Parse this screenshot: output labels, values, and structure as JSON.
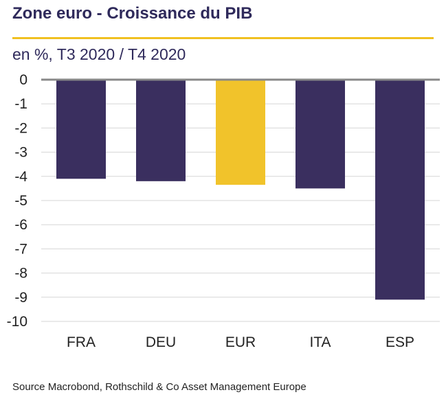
{
  "header": {
    "title": "Zone euro - Croissance du PIB",
    "subtitle": "en %, T3 2020 / T4 2020"
  },
  "footer": {
    "source": "Source Macrobond, Rothschild & Co Asset Management Europe"
  },
  "colors": {
    "bar": "#3a2f5f",
    "highlight": "#f1c32b",
    "accent_rule": "#f0c020",
    "grid": "#d6d6d6",
    "zero_line": "#888888",
    "text": "#222222",
    "title": "#2f2a5b"
  },
  "chart_data": {
    "type": "bar",
    "categories": [
      "FRA",
      "DEU",
      "EUR",
      "ITA",
      "ESP"
    ],
    "values": [
      -4.1,
      -4.2,
      -4.35,
      -4.5,
      -9.1
    ],
    "highlight_category": "EUR",
    "ylim": [
      -10,
      0
    ],
    "yticks": [
      0,
      -1,
      -2,
      -3,
      -4,
      -5,
      -6,
      -7,
      -8,
      -9,
      -10
    ],
    "grid": true,
    "xlabel": "",
    "ylabel": ""
  }
}
